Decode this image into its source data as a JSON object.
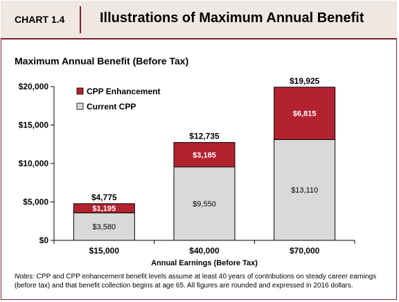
{
  "header": {
    "chart_number": "CHART 1.4",
    "title": "Illustrations of Maximum Annual Benefit"
  },
  "notes": {
    "label": "Notes:",
    "text": " CPP and CPP enhancement benefit levels assume at least 40 years of contributions on steady career earnings (before tax) and that benefit collection begins at age 65. All figures are rounded and expressed in 2016 dollars."
  },
  "colors": {
    "enhancement": "#b3222f",
    "current": "#d9d9d9",
    "accent": "#7a1f2b"
  },
  "chart_data": {
    "type": "bar",
    "stacked": true,
    "title": "Maximum Annual Benefit (Before Tax)",
    "xlabel": "Annual Earnings (Before Tax)",
    "ylabel": "",
    "categories": [
      "$15,000",
      "$40,000",
      "$70,000"
    ],
    "series": [
      {
        "name": "Current CPP",
        "values": [
          3580,
          9550,
          13110
        ],
        "labels": [
          "$3,580",
          "$9,550",
          "$13,110"
        ],
        "color": "#d9d9d9"
      },
      {
        "name": "CPP Enhancement",
        "values": [
          1195,
          3185,
          6815
        ],
        "labels": [
          "$1,195",
          "$3,185",
          "$6,815"
        ],
        "color": "#b3222f"
      }
    ],
    "totals": [
      4775,
      12735,
      19925
    ],
    "total_labels": [
      "$4,775",
      "$12,735",
      "$19,925"
    ],
    "ylim": [
      0,
      20000
    ],
    "yticks": [
      0,
      5000,
      10000,
      15000,
      20000
    ],
    "ytick_labels": [
      "$0",
      "$5,000",
      "$10,000",
      "$15,000",
      "$20,000"
    ],
    "legend": {
      "placement": "top-left",
      "entries": [
        "CPP Enhancement",
        "Current CPP"
      ]
    },
    "grid": false
  }
}
